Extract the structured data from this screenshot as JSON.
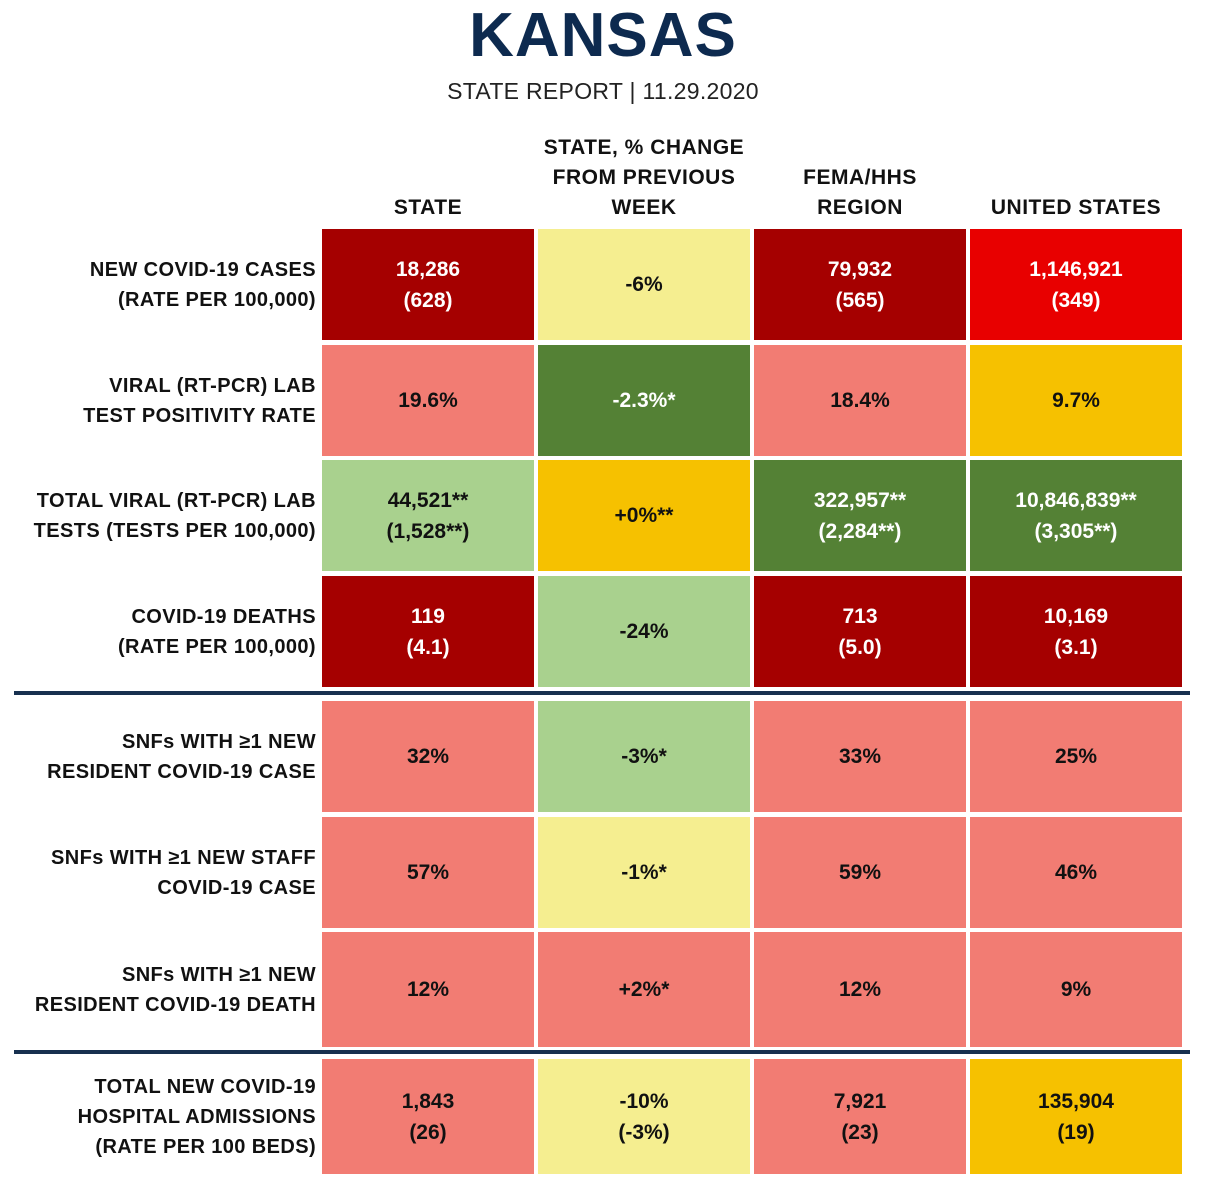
{
  "header": {
    "title": "KANSAS",
    "subtitle": "STATE REPORT | 11.29.2020"
  },
  "columns": [
    {
      "lines": [
        "STATE"
      ]
    },
    {
      "lines": [
        "STATE, % CHANGE",
        "FROM PREVIOUS",
        "WEEK"
      ]
    },
    {
      "lines": [
        "FEMA/HHS",
        "REGION"
      ]
    },
    {
      "lines": [
        "UNITED STATES"
      ]
    }
  ],
  "colors": {
    "dark_red": "#a50000",
    "red": "#e80000",
    "salmon": "#f27c73",
    "light_yellow": "#f5ee90",
    "yellow": "#f6c100",
    "light_green": "#a9d18e",
    "dark_green": "#548135",
    "divider": "#17304f",
    "title": "#0d2a4f"
  },
  "rows": [
    {
      "label": [
        "NEW COVID-19 CASES",
        "(RATE PER 100,000)"
      ],
      "cells": [
        {
          "lines": [
            "18,286",
            "(628)"
          ],
          "color": "dark_red"
        },
        {
          "lines": [
            "-6%"
          ],
          "color": "light_yellow"
        },
        {
          "lines": [
            "79,932",
            "(565)"
          ],
          "color": "dark_red"
        },
        {
          "lines": [
            "1,146,921",
            "(349)"
          ],
          "color": "red"
        }
      ]
    },
    {
      "label": [
        "VIRAL (RT-PCR) LAB",
        "TEST POSITIVITY RATE"
      ],
      "cells": [
        {
          "lines": [
            "19.6%"
          ],
          "color": "salmon"
        },
        {
          "lines": [
            "-2.3%*"
          ],
          "color": "dark_green"
        },
        {
          "lines": [
            "18.4%"
          ],
          "color": "salmon"
        },
        {
          "lines": [
            "9.7%"
          ],
          "color": "yellow"
        }
      ]
    },
    {
      "label": [
        "TOTAL VIRAL (RT-PCR) LAB",
        "TESTS (TESTS PER 100,000)"
      ],
      "cells": [
        {
          "lines": [
            "44,521**",
            "(1,528**)"
          ],
          "color": "light_green"
        },
        {
          "lines": [
            "+0%**"
          ],
          "color": "yellow"
        },
        {
          "lines": [
            "322,957**",
            "(2,284**)"
          ],
          "color": "dark_green"
        },
        {
          "lines": [
            "10,846,839**",
            "(3,305**)"
          ],
          "color": "dark_green"
        }
      ]
    },
    {
      "label": [
        "COVID-19 DEATHS",
        "(RATE PER 100,000)"
      ],
      "cells": [
        {
          "lines": [
            "119",
            "(4.1)"
          ],
          "color": "dark_red"
        },
        {
          "lines": [
            "-24%"
          ],
          "color": "light_green"
        },
        {
          "lines": [
            "713",
            "(5.0)"
          ],
          "color": "dark_red"
        },
        {
          "lines": [
            "10,169",
            "(3.1)"
          ],
          "color": "dark_red"
        }
      ]
    },
    {
      "label": [
        "SNFs WITH ≥1 NEW",
        "RESIDENT COVID-19 CASE"
      ],
      "cells": [
        {
          "lines": [
            "32%"
          ],
          "color": "salmon"
        },
        {
          "lines": [
            "-3%*"
          ],
          "color": "light_green"
        },
        {
          "lines": [
            "33%"
          ],
          "color": "salmon"
        },
        {
          "lines": [
            "25%"
          ],
          "color": "salmon"
        }
      ]
    },
    {
      "label": [
        "SNFs WITH ≥1 NEW STAFF",
        "COVID-19 CASE"
      ],
      "cells": [
        {
          "lines": [
            "57%"
          ],
          "color": "salmon"
        },
        {
          "lines": [
            "-1%*"
          ],
          "color": "light_yellow"
        },
        {
          "lines": [
            "59%"
          ],
          "color": "salmon"
        },
        {
          "lines": [
            "46%"
          ],
          "color": "salmon"
        }
      ]
    },
    {
      "label": [
        "SNFs WITH ≥1 NEW",
        "RESIDENT COVID-19 DEATH"
      ],
      "cells": [
        {
          "lines": [
            "12%"
          ],
          "color": "salmon"
        },
        {
          "lines": [
            "+2%*"
          ],
          "color": "salmon"
        },
        {
          "lines": [
            "12%"
          ],
          "color": "salmon"
        },
        {
          "lines": [
            "9%"
          ],
          "color": "salmon"
        }
      ]
    },
    {
      "label": [
        "TOTAL NEW COVID-19",
        "HOSPITAL ADMISSIONS",
        "(RATE PER 100 BEDS)"
      ],
      "cells": [
        {
          "lines": [
            "1,843",
            "(26)"
          ],
          "color": "salmon"
        },
        {
          "lines": [
            "-10%",
            "(-3%)"
          ],
          "color": "light_yellow"
        },
        {
          "lines": [
            "7,921",
            "(23)"
          ],
          "color": "salmon"
        },
        {
          "lines": [
            "135,904",
            "(19)"
          ],
          "color": "yellow"
        }
      ]
    }
  ]
}
